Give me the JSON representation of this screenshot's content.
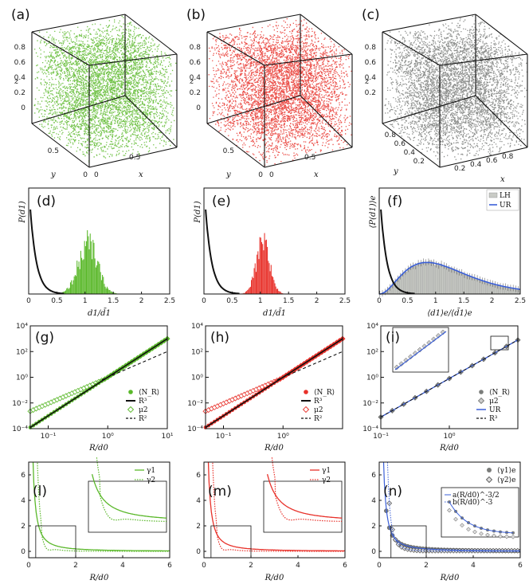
{
  "colors": {
    "green": "#5ab82a",
    "red": "#e8312a",
    "gray": "#7a7c7a",
    "blue": "#3a5fd8",
    "black": "#111111",
    "bargray": "#c9cbc6"
  },
  "chart_data": [
    {
      "id": "a",
      "type": "scatter3d",
      "label": "(a)",
      "color": "green",
      "xlabel": "x",
      "ylabel": "y",
      "zlabel": "z",
      "z_ticks": [
        "0.8",
        "0.6",
        "0.4",
        "0.2",
        "0"
      ],
      "y_ticks": [
        "0.5",
        "0"
      ],
      "x_ticks": [
        "0",
        "0.5"
      ]
    },
    {
      "id": "b",
      "type": "scatter3d",
      "label": "(b)",
      "color": "red",
      "xlabel": "x",
      "ylabel": "y",
      "zlabel": "z",
      "z_ticks": [
        "0.8",
        "0.6",
        "0.4",
        "0.2",
        "0"
      ],
      "y_ticks": [
        "0.5",
        "0"
      ],
      "x_ticks": [
        "0",
        "0.5"
      ]
    },
    {
      "id": "c",
      "type": "scatter3d",
      "label": "(c)",
      "color": "gray",
      "xlabel": "x",
      "ylabel": "y",
      "zlabel": "z",
      "z_ticks": [
        "0.8",
        "0.6",
        "0.4",
        "0.2"
      ],
      "y_ticks": [
        "0.8",
        "0.6",
        "0.4",
        "0.2"
      ],
      "x_ticks": [
        "0.2",
        "0.4",
        "0.6",
        "0.8"
      ]
    },
    {
      "id": "d",
      "type": "bar",
      "label": "(d)",
      "color": "green",
      "xlabel": "d1/d̄1",
      "ylabel": "P(d1)",
      "xlim": [
        0,
        2.5
      ],
      "x_ticks": [
        "0",
        "0.5",
        "1",
        "1.5",
        "2",
        "2.5"
      ],
      "peak_x": 1.05,
      "spread": 0.17
    },
    {
      "id": "e",
      "type": "bar",
      "label": "(e)",
      "color": "red",
      "xlabel": "d1/d̄1",
      "ylabel": "P(d1)",
      "xlim": [
        0,
        2.5
      ],
      "x_ticks": [
        "0",
        "0.5",
        "1",
        "1.5",
        "2",
        "2.5"
      ],
      "peak_x": 1.05,
      "spread": 0.12
    },
    {
      "id": "f",
      "type": "bar",
      "label": "(f)",
      "color": "bargray",
      "xlabel": "⟨d1⟩e/⟨d̄1⟩e",
      "ylabel": "⟨P(d1)⟩e",
      "xlim": [
        0,
        2.5
      ],
      "x_ticks": [
        "0",
        "0.5",
        "1",
        "1.5",
        "2",
        "2.5"
      ],
      "peak_x": 0.8,
      "legend": [
        {
          "name": "LH",
          "kind": "bar"
        },
        {
          "name": "UR",
          "kind": "line"
        }
      ]
    },
    {
      "id": "g",
      "type": "line-loglog",
      "label": "(g)",
      "color": "green",
      "xlabel": "R/d0",
      "x_ticks": [
        "10⁻¹",
        "10⁰",
        "10¹"
      ],
      "y_ticks": [
        "10⁴",
        "10²",
        "10⁰",
        "10⁻²",
        "10⁻⁴"
      ],
      "xlim": [
        0.05,
        10
      ],
      "ylim": [
        0.0001,
        10000
      ],
      "legend": [
        {
          "name": "⟨N_R⟩",
          "kind": "circle"
        },
        {
          "name": "R³",
          "kind": "solid"
        },
        {
          "name": "μ2",
          "kind": "diamond"
        },
        {
          "name": "R²",
          "kind": "dash"
        }
      ]
    },
    {
      "id": "h",
      "type": "line-loglog",
      "label": "(h)",
      "color": "red",
      "xlabel": "R/d0",
      "x_ticks": [
        "10⁻¹",
        "10⁰"
      ],
      "y_ticks": [
        "10⁴",
        "10²",
        "10⁰",
        "10⁻²",
        "10⁻⁴"
      ],
      "xlim": [
        0.05,
        10
      ],
      "ylim": [
        0.0001,
        10000
      ],
      "legend": [
        {
          "name": "⟨N_R⟩",
          "kind": "circle"
        },
        {
          "name": "R³",
          "kind": "solid"
        },
        {
          "name": "μ2",
          "kind": "diamond"
        },
        {
          "name": "R²",
          "kind": "dash"
        }
      ]
    },
    {
      "id": "i",
      "type": "line-loglog",
      "label": "(i)",
      "color": "gray",
      "xlabel": "R/d0",
      "x_ticks": [
        "10⁻¹",
        "10⁰"
      ],
      "y_ticks": [
        "10⁴",
        "10²",
        "10⁰",
        "10⁻²",
        "10⁻⁴"
      ],
      "xlim": [
        0.1,
        10
      ],
      "ylim": [
        0.0001,
        10000
      ],
      "legend": [
        {
          "name": "⟨N_R⟩",
          "kind": "circle"
        },
        {
          "name": "μ2",
          "kind": "diamond"
        },
        {
          "name": "UR",
          "kind": "blue"
        },
        {
          "name": "R³",
          "kind": "dash"
        }
      ]
    },
    {
      "id": "l",
      "type": "line",
      "label": "(l)",
      "color": "green",
      "xlabel": "R/d0",
      "x_ticks": [
        "0",
        "2",
        "4",
        "6"
      ],
      "y_ticks": [
        "6",
        "4",
        "2",
        "0"
      ],
      "xlim": [
        0,
        6
      ],
      "ylim": [
        -0.5,
        7
      ],
      "legend": [
        {
          "name": "γ1",
          "kind": "solid"
        },
        {
          "name": "γ2",
          "kind": "dot"
        }
      ]
    },
    {
      "id": "m",
      "type": "line",
      "label": "(m)",
      "color": "red",
      "xlabel": "R/d0",
      "x_ticks": [
        "0",
        "2",
        "4",
        "6"
      ],
      "y_ticks": [
        "6",
        "4",
        "2",
        "0"
      ],
      "xlim": [
        0,
        6
      ],
      "ylim": [
        -0.5,
        7
      ],
      "legend": [
        {
          "name": "γ1",
          "kind": "solid"
        },
        {
          "name": "γ2",
          "kind": "dot"
        }
      ]
    },
    {
      "id": "n",
      "type": "line",
      "label": "(n)",
      "color": "gray",
      "xlabel": "R/d0",
      "x_ticks": [
        "0",
        "2",
        "4",
        "6"
      ],
      "y_ticks": [
        "6",
        "4",
        "2",
        "0"
      ],
      "xlim": [
        0,
        6
      ],
      "ylim": [
        -0.5,
        7
      ],
      "legend": [
        {
          "name": "⟨γ1⟩e",
          "kind": "circle"
        },
        {
          "name": "⟨γ2⟩e",
          "kind": "diamond"
        }
      ],
      "inset_legend": [
        {
          "name": "a(R/d0)^-3/2",
          "kind": "solid"
        },
        {
          "name": "b(R/d0)^-3",
          "kind": "dot"
        }
      ]
    }
  ]
}
